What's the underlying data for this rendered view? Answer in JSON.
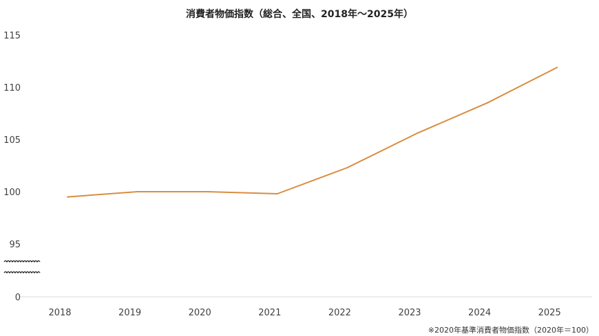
{
  "chart_data": {
    "type": "line",
    "title": "消費者物価指数（総合、全国、2018年～2025年）",
    "xlabel": "",
    "ylabel": "",
    "categories": [
      "2018",
      "2019",
      "2020",
      "2021",
      "2022",
      "2023",
      "2024",
      "2025"
    ],
    "values": [
      99.5,
      100.0,
      100.0,
      99.8,
      102.3,
      105.6,
      108.5,
      111.9
    ],
    "y_ticks": [
      "115",
      "110",
      "105",
      "100",
      "95",
      "0"
    ],
    "y_tick_values": [
      115,
      110,
      105,
      100,
      95
    ],
    "ylim": [
      95,
      115
    ],
    "axis_break": true,
    "grid": false,
    "line_color": "#D98C3F",
    "note": "※2020年基準消費者物価指数（2020年＝100）"
  }
}
